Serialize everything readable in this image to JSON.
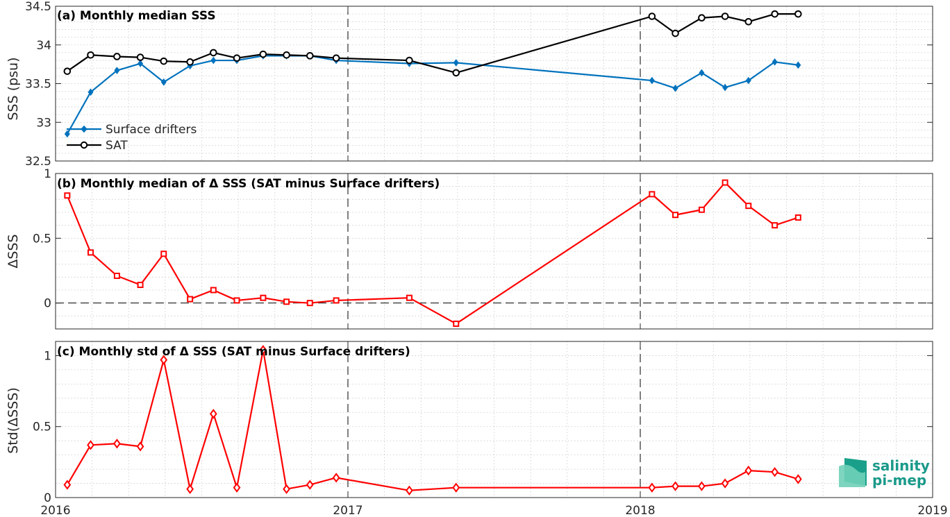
{
  "colors": {
    "drifters": "#0072BD",
    "sat": "#000000",
    "delta": "#FF0000",
    "axis": "#262626",
    "grid": "#b0b0b0"
  },
  "x_ticks": [
    "2016",
    "2017",
    "2018",
    "2019"
  ],
  "logo": {
    "line1": "salinity",
    "line2": "pi-mep"
  },
  "chart_data": [
    {
      "type": "line",
      "title": "(a) Monthly median SSS",
      "ylabel": "SSS (psu)",
      "ylim": [
        32.5,
        34.5
      ],
      "yticks": [
        "32.5",
        "33",
        "33.5",
        "34",
        "34.5"
      ],
      "xlim": [
        2016,
        2019
      ],
      "grid": true,
      "legend": "lower-left",
      "series": [
        {
          "name": "Surface drifters",
          "marker": "diamond",
          "color": "#0072BD",
          "x": [
            2016.04,
            2016.12,
            2016.21,
            2016.29,
            2016.37,
            2016.46,
            2016.54,
            2016.62,
            2016.71,
            2016.79,
            2016.87,
            2016.96,
            2017.21,
            2017.37,
            2018.04,
            2018.12,
            2018.21,
            2018.29,
            2018.37,
            2018.46,
            2018.54
          ],
          "y": [
            32.85,
            33.39,
            33.67,
            33.76,
            33.52,
            33.73,
            33.8,
            33.8,
            33.86,
            33.86,
            33.86,
            33.8,
            33.76,
            33.77,
            33.54,
            33.44,
            33.64,
            33.45,
            33.54,
            33.78,
            33.74
          ]
        },
        {
          "name": "SAT",
          "marker": "circle",
          "color": "#000000",
          "x": [
            2016.04,
            2016.12,
            2016.21,
            2016.29,
            2016.37,
            2016.46,
            2016.54,
            2016.62,
            2016.71,
            2016.79,
            2016.87,
            2016.96,
            2017.21,
            2017.37,
            2018.04,
            2018.12,
            2018.21,
            2018.29,
            2018.37,
            2018.46,
            2018.54
          ],
          "y": [
            33.66,
            33.87,
            33.85,
            33.84,
            33.79,
            33.78,
            33.9,
            33.83,
            33.88,
            33.87,
            33.86,
            33.83,
            33.8,
            33.64,
            34.37,
            34.15,
            34.35,
            34.37,
            34.3,
            34.4,
            34.4
          ]
        }
      ]
    },
    {
      "type": "line",
      "title": "(b) Monthly median of Δ SSS (SAT minus Surface drifters)",
      "ylabel": "ΔSSS",
      "ylim": [
        -0.2,
        1
      ],
      "yticks": [
        "0",
        "0.5",
        "1"
      ],
      "xlim": [
        2016,
        2019
      ],
      "grid": true,
      "series": [
        {
          "marker": "square",
          "color": "#FF0000",
          "x": [
            2016.04,
            2016.12,
            2016.21,
            2016.29,
            2016.37,
            2016.46,
            2016.54,
            2016.62,
            2016.71,
            2016.79,
            2016.87,
            2016.96,
            2017.21,
            2017.37,
            2018.04,
            2018.12,
            2018.21,
            2018.29,
            2018.37,
            2018.46,
            2018.54
          ],
          "y": [
            0.83,
            0.39,
            0.21,
            0.14,
            0.38,
            0.03,
            0.1,
            0.02,
            0.04,
            0.01,
            0.0,
            0.02,
            0.04,
            -0.16,
            0.84,
            0.68,
            0.72,
            0.93,
            0.75,
            0.6,
            0.66
          ]
        }
      ]
    },
    {
      "type": "line",
      "title": "(c) Monthly std of Δ SSS (SAT minus Surface drifters)",
      "ylabel": "Std(ΔSSS)",
      "ylim": [
        0,
        1.1
      ],
      "yticks": [
        "0",
        "0.5",
        "1"
      ],
      "xlim": [
        2016,
        2019
      ],
      "grid": true,
      "series": [
        {
          "marker": "diamond",
          "color": "#FF0000",
          "x": [
            2016.04,
            2016.12,
            2016.21,
            2016.29,
            2016.37,
            2016.46,
            2016.54,
            2016.62,
            2016.71,
            2016.79,
            2016.87,
            2016.96,
            2017.21,
            2017.37,
            2018.04,
            2018.12,
            2018.21,
            2018.29,
            2018.37,
            2018.46,
            2018.54
          ],
          "y": [
            0.09,
            0.37,
            0.38,
            0.36,
            0.97,
            0.06,
            0.59,
            0.07,
            1.04,
            0.06,
            0.09,
            0.14,
            0.05,
            0.07,
            0.07,
            0.08,
            0.08,
            0.1,
            0.19,
            0.18,
            0.13
          ]
        }
      ]
    }
  ]
}
